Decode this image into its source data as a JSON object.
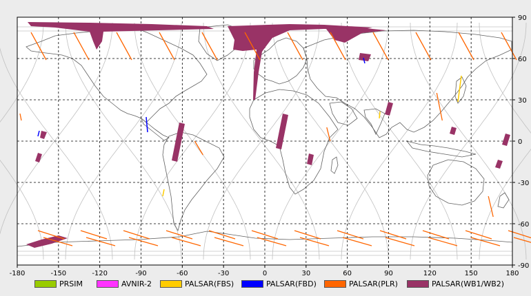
{
  "map": {
    "x_ticks": [
      "-180",
      "-150",
      "-120",
      "-90",
      "-60",
      "-30",
      "0",
      "30",
      "60",
      "90",
      "120",
      "150",
      "180"
    ],
    "y_ticks": [
      "90",
      "60",
      "30",
      "0",
      "-30",
      "-60",
      "-90"
    ],
    "x_range": [
      -180,
      180
    ],
    "y_range": [
      -90,
      90
    ],
    "grid": "dashed",
    "colors": {
      "grid": "#000000",
      "frame": "#000000",
      "orbit_tracks": "#c0c0c0",
      "coastline": "#606060"
    }
  },
  "legend": [
    {
      "label": "PRSIM",
      "color": "#99cc00"
    },
    {
      "label": "AVNIR-2",
      "color": "#ff33ff"
    },
    {
      "label": "PALSAR(FBS)",
      "color": "#ffcc00"
    },
    {
      "label": "PALSAR(FBD)",
      "color": "#0000ff"
    },
    {
      "label": "PALSAR(PLR)",
      "color": "#ff6600"
    },
    {
      "label": "PALSAR(WB1/WB2)",
      "color": "#993366"
    }
  ]
}
